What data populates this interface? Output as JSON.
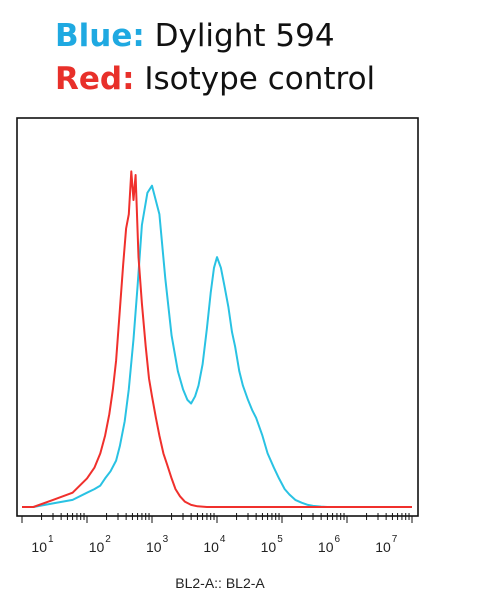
{
  "legend": {
    "blue": {
      "key": "Blue:",
      "text": " Dylight 594",
      "color": "#1fa9e1"
    },
    "red": {
      "key": "Red:",
      "text": " Isotype control",
      "color": "#e8302a"
    }
  },
  "chart_data": {
    "type": "line",
    "title": "",
    "xlabel": "BL2-A:: BL2-A",
    "ylabel": "",
    "xscale": "log",
    "xlim": [
      10,
      10000000
    ],
    "ylim": [
      0,
      100
    ],
    "grid": false,
    "legend_placement": "top (text above plot)",
    "x_ticks": [
      {
        "base": "10",
        "exp": "1"
      },
      {
        "base": "10",
        "exp": "2"
      },
      {
        "base": "10",
        "exp": "3"
      },
      {
        "base": "10",
        "exp": "4"
      },
      {
        "base": "10",
        "exp": "5"
      },
      {
        "base": "10",
        "exp": "6"
      },
      {
        "base": "10",
        "exp": "7"
      }
    ],
    "series": [
      {
        "name": "Dylight 594",
        "color": "#29c2e3",
        "x": [
          10,
          15,
          30,
          60,
          100,
          130,
          160,
          190,
          230,
          280,
          320,
          380,
          440,
          520,
          600,
          700,
          850,
          1000,
          1300,
          1600,
          2000,
          2500,
          3000,
          3500,
          4000,
          4600,
          5200,
          6000,
          7000,
          8000,
          9000,
          10000,
          11500,
          13000,
          15000,
          17000,
          19000,
          22000,
          25000,
          30000,
          35000,
          40000,
          50000,
          60000,
          75000,
          90000,
          110000,
          130000,
          160000,
          200000,
          250000,
          300000,
          400000,
          500000,
          700000,
          1000000,
          2000000,
          5000000,
          10000000
        ],
        "y": [
          0,
          0,
          1,
          2,
          4,
          5,
          6,
          8,
          10,
          13,
          17,
          24,
          33,
          47,
          62,
          79,
          88,
          90,
          82,
          64,
          48,
          38,
          33,
          30,
          29,
          31,
          34,
          40,
          50,
          60,
          67,
          70,
          67,
          62,
          56,
          49,
          45,
          38,
          34,
          30,
          27,
          25,
          20,
          15,
          11,
          8,
          5,
          3.5,
          2,
          1.2,
          0.6,
          0.3,
          0.1,
          0,
          0,
          0,
          0,
          0,
          0
        ]
      },
      {
        "name": "Isotype control",
        "color": "#f0302c",
        "x": [
          10,
          15,
          30,
          60,
          100,
          130,
          160,
          190,
          220,
          250,
          280,
          320,
          360,
          400,
          440,
          480,
          520,
          560,
          620,
          700,
          800,
          900,
          1000,
          1150,
          1300,
          1500,
          1700,
          2000,
          2300,
          2700,
          3200,
          4000,
          5000,
          7000,
          10000,
          10000000
        ],
        "y": [
          0,
          0,
          2,
          4,
          8,
          11,
          15,
          20,
          26,
          33,
          41,
          55,
          68,
          78,
          82,
          94,
          86,
          93,
          70,
          57,
          45,
          36,
          31,
          25,
          20,
          15,
          12,
          8,
          5,
          3,
          1.5,
          0.6,
          0.2,
          0,
          0,
          0
        ]
      }
    ]
  }
}
